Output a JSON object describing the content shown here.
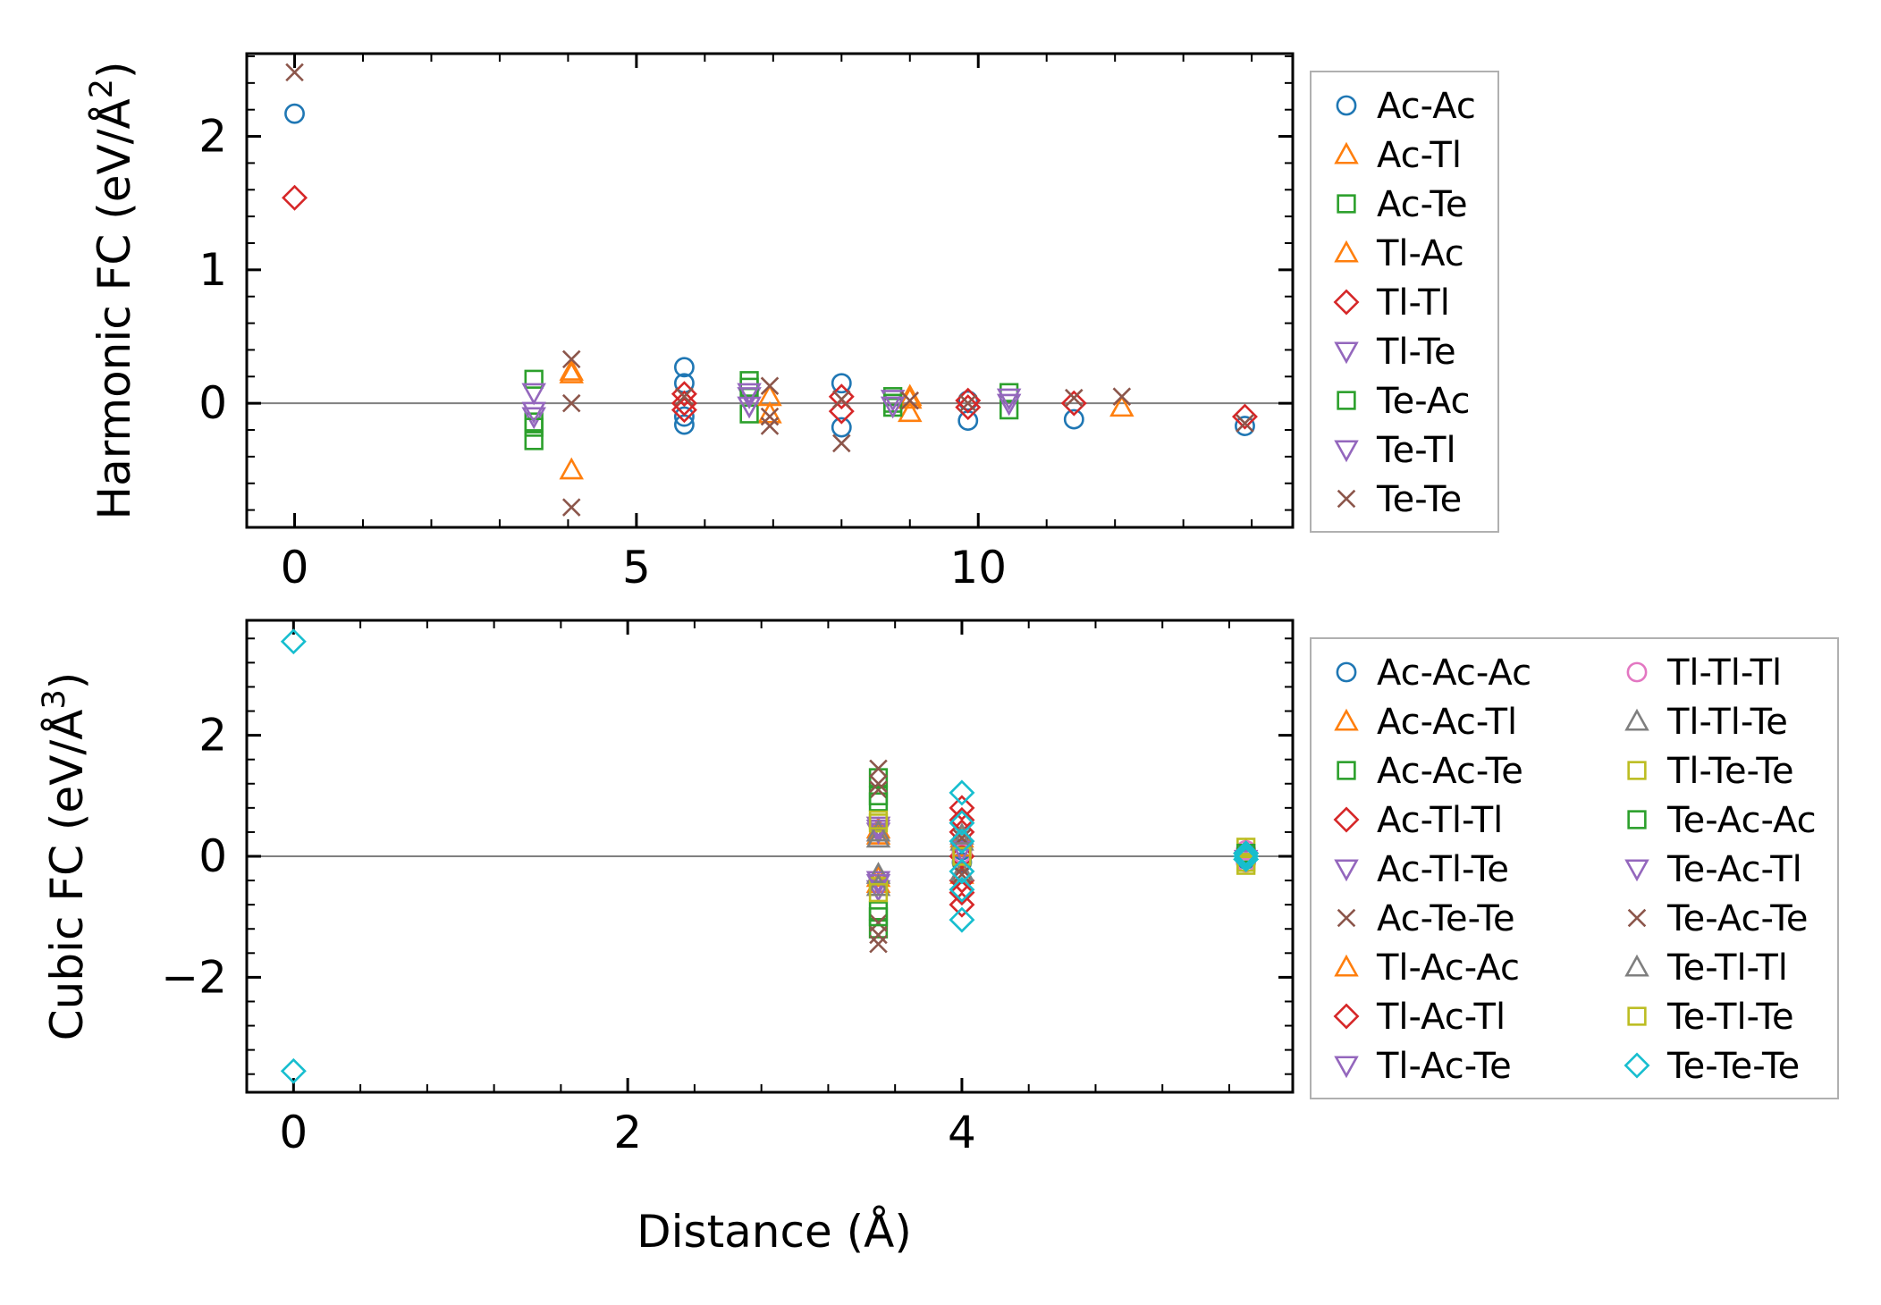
{
  "figure": {
    "xlabel_shared": "Distance (Å)"
  },
  "chart_data": [
    {
      "type": "scatter",
      "title": "",
      "xlabel": "",
      "ylabel_main": "Harmonic FC (eV/Å",
      "ylabel_sup": "2",
      "ylabel_close": ")",
      "xlim": [
        -0.7,
        14.6
      ],
      "ylim": [
        -0.93,
        2.62
      ],
      "xticks": [
        0,
        5,
        10
      ],
      "xtick_labels": [
        "0",
        "5",
        "10"
      ],
      "yticks": [
        0,
        1,
        2
      ],
      "ytick_labels": [
        "0",
        "1",
        "2"
      ],
      "zero_line": true,
      "legend_position": "outside-right",
      "series": [
        {
          "name": "Ac-Ac",
          "marker": "circle",
          "color": "#1f77b4",
          "points": [
            [
              0,
              2.17
            ],
            [
              5.7,
              0.27
            ],
            [
              5.7,
              0.15
            ],
            [
              5.7,
              -0.16
            ],
            [
              5.7,
              -0.1
            ],
            [
              8.0,
              0.15
            ],
            [
              8.0,
              -0.18
            ],
            [
              9.85,
              -0.13
            ],
            [
              9.85,
              0.02
            ],
            [
              11.4,
              -0.12
            ],
            [
              13.9,
              -0.17
            ]
          ]
        },
        {
          "name": "Ac-Tl",
          "marker": "triangle-up",
          "color": "#ff7f0e",
          "points": [
            [
              4.05,
              0.22
            ],
            [
              4.05,
              -0.5
            ],
            [
              6.95,
              -0.08
            ],
            [
              9.0,
              -0.07
            ],
            [
              9.0,
              0.03
            ],
            [
              12.1,
              -0.03
            ]
          ]
        },
        {
          "name": "Ac-Te",
          "marker": "square",
          "color": "#2ca02c",
          "points": [
            [
              3.5,
              0.18
            ],
            [
              3.5,
              -0.28
            ],
            [
              3.5,
              -0.14
            ],
            [
              6.65,
              0.17
            ],
            [
              6.65,
              -0.08
            ],
            [
              8.75,
              0.05
            ],
            [
              8.75,
              -0.03
            ],
            [
              10.45,
              0.08
            ],
            [
              10.45,
              -0.05
            ]
          ]
        },
        {
          "name": "Tl-Ac",
          "marker": "triangle-up",
          "color": "#ff7f0e",
          "points": [
            [
              4.05,
              0.24
            ],
            [
              6.95,
              0.05
            ],
            [
              9.0,
              0.05
            ]
          ]
        },
        {
          "name": "Tl-Tl",
          "marker": "diamond",
          "color": "#d62728",
          "points": [
            [
              0,
              1.54
            ],
            [
              5.7,
              0.07
            ],
            [
              5.7,
              -0.05
            ],
            [
              5.7,
              0.0
            ],
            [
              8.0,
              0.05
            ],
            [
              8.0,
              -0.06
            ],
            [
              9.85,
              0.02
            ],
            [
              9.85,
              -0.03
            ],
            [
              11.4,
              0.0
            ],
            [
              13.9,
              -0.1
            ]
          ]
        },
        {
          "name": "Tl-Te",
          "marker": "triangle-down",
          "color": "#9467bd",
          "points": [
            [
              3.5,
              0.08
            ],
            [
              3.5,
              -0.1
            ],
            [
              6.65,
              0.05
            ],
            [
              6.65,
              -0.02
            ],
            [
              8.75,
              0.03
            ],
            [
              10.45,
              0.0
            ]
          ]
        },
        {
          "name": "Te-Ac",
          "marker": "square",
          "color": "#2ca02c",
          "points": [
            [
              3.5,
              -0.18
            ],
            [
              6.65,
              0.12
            ],
            [
              8.75,
              0.0
            ]
          ]
        },
        {
          "name": "Te-Tl",
          "marker": "triangle-down",
          "color": "#9467bd",
          "points": [
            [
              3.5,
              -0.06
            ],
            [
              6.65,
              0.08
            ],
            [
              8.75,
              -0.02
            ],
            [
              10.45,
              0.04
            ]
          ]
        },
        {
          "name": "Te-Te",
          "marker": "x",
          "color": "#8c564b",
          "points": [
            [
              0,
              2.48
            ],
            [
              4.05,
              0.33
            ],
            [
              4.05,
              0.0
            ],
            [
              4.05,
              -0.78
            ],
            [
              5.7,
              0.05
            ],
            [
              6.95,
              0.13
            ],
            [
              6.95,
              -0.1
            ],
            [
              6.95,
              -0.17
            ],
            [
              8.0,
              0.03
            ],
            [
              8.0,
              -0.3
            ],
            [
              9.0,
              0.02
            ],
            [
              9.85,
              0.0
            ],
            [
              11.4,
              0.04
            ],
            [
              12.1,
              0.05
            ],
            [
              13.9,
              -0.15
            ]
          ]
        }
      ]
    },
    {
      "type": "scatter",
      "title": "",
      "xlabel": "Distance (Å)",
      "ylabel_main": "Cubic FC (eV/Å",
      "ylabel_sup": "3",
      "ylabel_close": ")",
      "xlim": [
        -0.28,
        5.98
      ],
      "ylim": [
        -3.9,
        3.9
      ],
      "xticks": [
        0,
        2,
        4
      ],
      "xtick_labels": [
        "0",
        "2",
        "4"
      ],
      "yticks": [
        -2,
        0,
        2
      ],
      "ytick_labels": [
        "−2",
        "0",
        "2"
      ],
      "zero_line": true,
      "legend_position": "outside-right",
      "legend_columns": 2,
      "series": [
        {
          "name": "Ac-Ac-Ac",
          "marker": "circle",
          "color": "#1f77b4",
          "points": [
            [
              5.7,
              0.05
            ],
            [
              5.7,
              -0.05
            ],
            [
              4.0,
              0.1
            ],
            [
              4.0,
              -0.1
            ]
          ]
        },
        {
          "name": "Ac-Ac-Tl",
          "marker": "triangle-up",
          "color": "#ff7f0e",
          "points": [
            [
              3.5,
              0.45
            ],
            [
              3.5,
              -0.45
            ],
            [
              4.0,
              0.3
            ],
            [
              4.0,
              -0.3
            ],
            [
              5.7,
              0.1
            ]
          ]
        },
        {
          "name": "Ac-Ac-Te",
          "marker": "square",
          "color": "#2ca02c",
          "points": [
            [
              3.5,
              1.3
            ],
            [
              3.5,
              -1.2
            ],
            [
              3.5,
              0.9
            ],
            [
              3.5,
              -0.9
            ],
            [
              5.7,
              0.0
            ]
          ]
        },
        {
          "name": "Ac-Tl-Tl",
          "marker": "diamond",
          "color": "#d62728",
          "points": [
            [
              4.0,
              0.8
            ],
            [
              4.0,
              -0.8
            ],
            [
              4.0,
              0.4
            ],
            [
              4.0,
              -0.4
            ],
            [
              5.7,
              0.05
            ]
          ]
        },
        {
          "name": "Ac-Tl-Te",
          "marker": "triangle-down",
          "color": "#9467bd",
          "points": [
            [
              3.5,
              0.5
            ],
            [
              3.5,
              -0.55
            ],
            [
              5.7,
              -0.05
            ]
          ]
        },
        {
          "name": "Ac-Te-Te",
          "marker": "x",
          "color": "#8c564b",
          "points": [
            [
              3.5,
              1.45
            ],
            [
              3.5,
              -1.45
            ],
            [
              3.5,
              1.1
            ],
            [
              3.5,
              -1.1
            ],
            [
              4.0,
              0.2
            ],
            [
              4.0,
              -0.2
            ]
          ]
        },
        {
          "name": "Tl-Ac-Ac",
          "marker": "triangle-up",
          "color": "#ff7f0e",
          "points": [
            [
              3.5,
              0.35
            ],
            [
              3.5,
              -0.35
            ],
            [
              4.0,
              0.15
            ]
          ]
        },
        {
          "name": "Tl-Ac-Tl",
          "marker": "diamond",
          "color": "#d62728",
          "points": [
            [
              4.0,
              0.6
            ],
            [
              4.0,
              -0.6
            ],
            [
              4.0,
              0.0
            ]
          ]
        },
        {
          "name": "Tl-Ac-Te",
          "marker": "triangle-down",
          "color": "#9467bd",
          "points": [
            [
              3.5,
              0.4
            ],
            [
              3.5,
              -0.4
            ]
          ]
        },
        {
          "name": "Tl-Tl-Tl",
          "marker": "circle",
          "color": "#e377c2",
          "points": [
            [
              5.7,
              0.1
            ],
            [
              5.7,
              -0.1
            ],
            [
              4.0,
              0.05
            ]
          ]
        },
        {
          "name": "Tl-Tl-Te",
          "marker": "triangle-up",
          "color": "#7f7f7f",
          "points": [
            [
              3.5,
              0.3
            ],
            [
              3.5,
              -0.3
            ],
            [
              4.0,
              0.25
            ],
            [
              4.0,
              -0.25
            ]
          ]
        },
        {
          "name": "Tl-Te-Te",
          "marker": "square",
          "color": "#bcbd22",
          "points": [
            [
              3.5,
              0.55
            ],
            [
              3.5,
              -0.5
            ],
            [
              5.7,
              0.15
            ],
            [
              5.7,
              -0.15
            ]
          ]
        },
        {
          "name": "Te-Ac-Ac",
          "marker": "square",
          "color": "#2ca02c",
          "points": [
            [
              3.5,
              1.0
            ],
            [
              3.5,
              -1.0
            ],
            [
              5.7,
              0.05
            ]
          ]
        },
        {
          "name": "Te-Ac-Tl",
          "marker": "triangle-down",
          "color": "#9467bd",
          "points": [
            [
              3.5,
              0.45
            ],
            [
              3.5,
              -0.45
            ],
            [
              4.0,
              0.1
            ]
          ]
        },
        {
          "name": "Te-Ac-Te",
          "marker": "x",
          "color": "#8c564b",
          "points": [
            [
              3.5,
              1.2
            ],
            [
              3.5,
              -1.3
            ],
            [
              4.0,
              0.3
            ],
            [
              4.0,
              -0.3
            ]
          ]
        },
        {
          "name": "Te-Tl-Tl",
          "marker": "triangle-up",
          "color": "#7f7f7f",
          "points": [
            [
              3.5,
              0.4
            ],
            [
              3.5,
              -0.5
            ],
            [
              4.0,
              0.35
            ]
          ]
        },
        {
          "name": "Te-Tl-Te",
          "marker": "square",
          "color": "#bcbd22",
          "points": [
            [
              3.5,
              0.6
            ],
            [
              3.5,
              -0.6
            ],
            [
              4.0,
              0.0
            ],
            [
              5.7,
              -0.1
            ]
          ]
        },
        {
          "name": "Te-Te-Te",
          "marker": "diamond",
          "color": "#17becf",
          "points": [
            [
              0,
              3.55
            ],
            [
              0,
              -3.55
            ],
            [
              4.0,
              1.05
            ],
            [
              4.0,
              -1.05
            ],
            [
              4.0,
              0.55
            ],
            [
              4.0,
              -0.55
            ],
            [
              4.0,
              0.25
            ],
            [
              4.0,
              -0.25
            ],
            [
              5.7,
              0.0
            ],
            [
              5.7,
              0.05
            ],
            [
              5.7,
              -0.05
            ]
          ]
        }
      ]
    }
  ]
}
